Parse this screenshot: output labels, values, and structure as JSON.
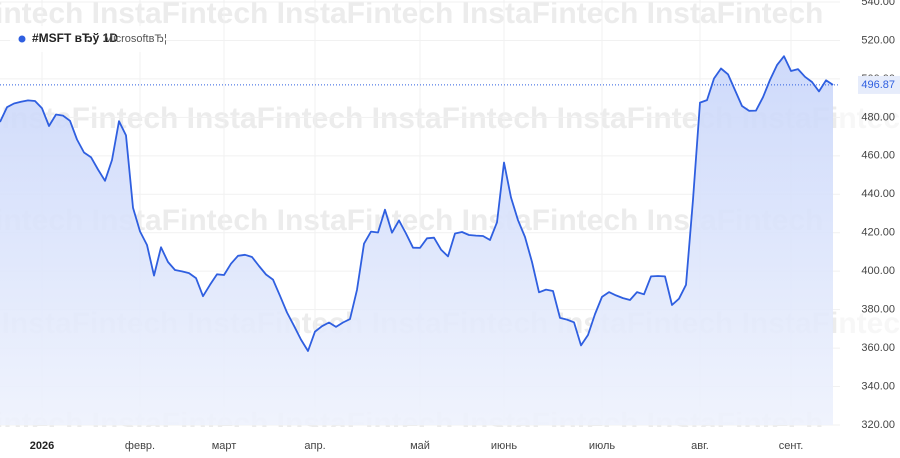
{
  "chart_data": {
    "type": "area",
    "title": "#MSFT вЂў 1D",
    "subtitle": "MicrosoftвЂ¦",
    "watermark": "InstaFintech",
    "color": "#2f5fe0",
    "grid": true,
    "categories": [
      null,
      null,
      null,
      null,
      null,
      null,
      "2026",
      null,
      null,
      null,
      null,
      null,
      null,
      null,
      null,
      null,
      null,
      null,
      null,
      null,
      "февр.",
      null,
      null,
      null,
      null,
      null,
      null,
      null,
      null,
      null,
      null,
      null,
      "март",
      null,
      null,
      null,
      null,
      null,
      null,
      null,
      null,
      null,
      null,
      null,
      null,
      "апр.",
      null,
      null,
      null,
      null,
      null,
      null,
      null,
      null,
      null,
      null,
      null,
      null,
      null,
      null,
      "май",
      null,
      null,
      null,
      null,
      null,
      null,
      null,
      null,
      null,
      null,
      null,
      "июнь",
      null,
      null,
      null,
      null,
      null,
      null,
      null,
      null,
      null,
      null,
      null,
      null,
      null,
      "июль",
      null,
      null,
      null,
      null,
      null,
      null,
      null,
      null,
      null,
      null,
      null,
      null,
      null,
      "авг.",
      null,
      null,
      null,
      null,
      null,
      null,
      null,
      null,
      null,
      null,
      null,
      null,
      "сент.",
      null,
      null,
      null,
      null,
      null,
      null
    ],
    "values": [
      477.6,
      485.3,
      487.2,
      488.1,
      488.8,
      488.5,
      484.7,
      475.5,
      481.5,
      480.9,
      478.2,
      468.5,
      461.7,
      459.3,
      452.9,
      447,
      457.8,
      478,
      470.6,
      433,
      420.7,
      413.6,
      397.7,
      412.4,
      404.8,
      400.6,
      399.9,
      399,
      396.4,
      387,
      392.9,
      398.4,
      398,
      403.9,
      408,
      408.5,
      407.4,
      402.7,
      398.3,
      395.6,
      387.2,
      378.5,
      371.6,
      364.4,
      358.5,
      368.6,
      371.4,
      373.3,
      371,
      373.3,
      375.1,
      390.3,
      414.3,
      420.6,
      420.1,
      432,
      420,
      426.4,
      419.6,
      412.2,
      412.1,
      417.1,
      417.4,
      411.2,
      407.7,
      419.6,
      420.4,
      418.8,
      418.5,
      418.3,
      416.2,
      425.4,
      456.5,
      438.3,
      426.5,
      417.8,
      404.8,
      389,
      390.4,
      389.7,
      375.7,
      374.8,
      373.4,
      361.4,
      366.8,
      377.7,
      386.6,
      389.1,
      387.4,
      386,
      385,
      389.1,
      388,
      397.3,
      397.5,
      397.3,
      382.4,
      385.7,
      392.9,
      437.2,
      487.7,
      489,
      500.2,
      505.4,
      502.4,
      494.2,
      485.9,
      483.4,
      483.5,
      490.5,
      499.5,
      507.2,
      511.8,
      504.1,
      505.1,
      501.1,
      498.4,
      493.5,
      499.3,
      496.87
    ],
    "ylim": [
      320,
      540
    ],
    "yticks": [
      {
        "value": 320,
        "label": "320.00"
      },
      {
        "value": 340,
        "label": "340.00"
      },
      {
        "value": 360,
        "label": "360.00"
      },
      {
        "value": 380,
        "label": "380.00"
      },
      {
        "value": 400,
        "label": "400.00"
      },
      {
        "value": 420,
        "label": "420.00"
      },
      {
        "value": 440,
        "label": "440.00"
      },
      {
        "value": 460,
        "label": "460.00"
      },
      {
        "value": 480,
        "label": "480.00"
      },
      {
        "value": 500,
        "label": "500.00"
      },
      {
        "value": 520,
        "label": "520.00"
      },
      {
        "value": 540,
        "label": "540.00"
      }
    ]
  }
}
